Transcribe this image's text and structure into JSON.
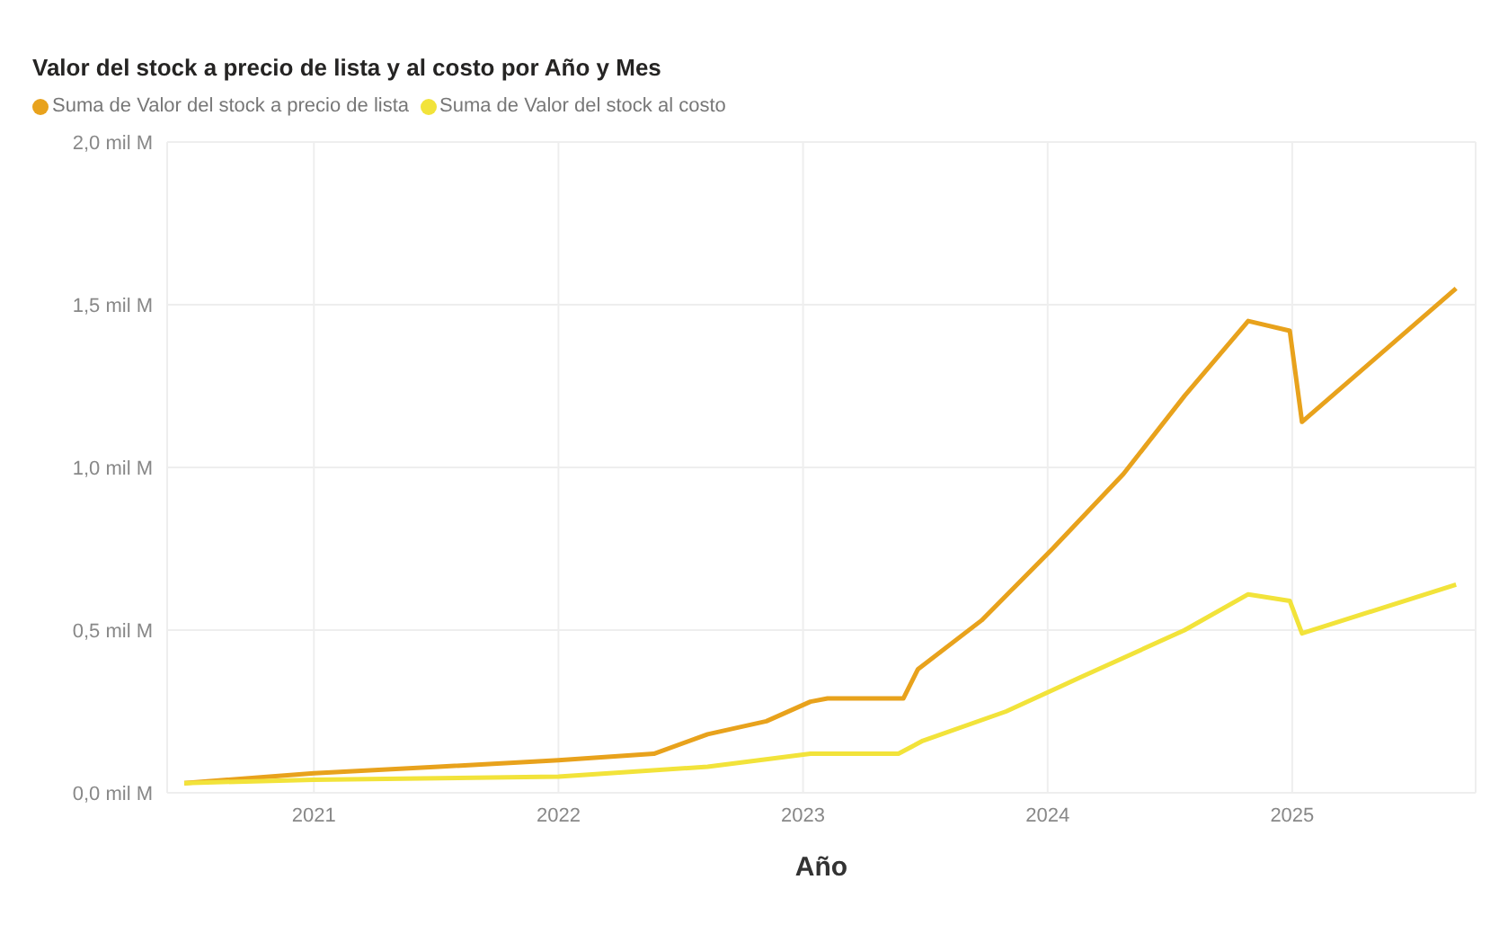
{
  "chart_data": {
    "type": "line",
    "title": "Valor del stock a precio de lista y al costo por Año y Mes",
    "xlabel": "Año",
    "series": [
      {
        "name": "Suma de Valor del stock a precio de lista",
        "color": "#e8a21c",
        "x": [
          2020.47,
          2021.0,
          2021.51,
          2022.0,
          2022.39,
          2022.61,
          2022.85,
          2023.03,
          2023.1,
          2023.41,
          2023.47,
          2023.73,
          2024.02,
          2024.31,
          2024.56,
          2024.82,
          2024.99,
          2025.04,
          2025.67
        ],
        "values": [
          0.03,
          0.06,
          0.08,
          0.1,
          0.12,
          0.18,
          0.22,
          0.28,
          0.29,
          0.29,
          0.38,
          0.53,
          0.75,
          0.98,
          1.22,
          1.45,
          1.42,
          1.14,
          1.55
        ]
      },
      {
        "name": "Suma de Valor del stock al costo",
        "color": "#f2e33a",
        "x": [
          2020.47,
          2021.0,
          2022.0,
          2022.61,
          2023.03,
          2023.39,
          2023.49,
          2023.83,
          2024.12,
          2024.56,
          2024.82,
          2024.99,
          2025.04,
          2025.67
        ],
        "values": [
          0.03,
          0.04,
          0.05,
          0.08,
          0.12,
          0.12,
          0.16,
          0.25,
          0.35,
          0.5,
          0.61,
          0.59,
          0.49,
          0.64
        ]
      }
    ],
    "xlim": [
      2020.4,
      2025.75
    ],
    "xticks": [
      2021,
      2022,
      2023,
      2024,
      2025
    ],
    "ylim": [
      0,
      2
    ],
    "yticks": [
      {
        "value": 0,
        "label": "0,0 mil M"
      },
      {
        "value": 0.5,
        "label": "0,5 mil M"
      },
      {
        "value": 1,
        "label": "1,0 mil M"
      },
      {
        "value": 1.5,
        "label": "1,5 mil M"
      },
      {
        "value": 2,
        "label": "2,0 mil M"
      }
    ],
    "grid": true,
    "legend": "top left",
    "marker": "none",
    "line_style": "solid"
  }
}
